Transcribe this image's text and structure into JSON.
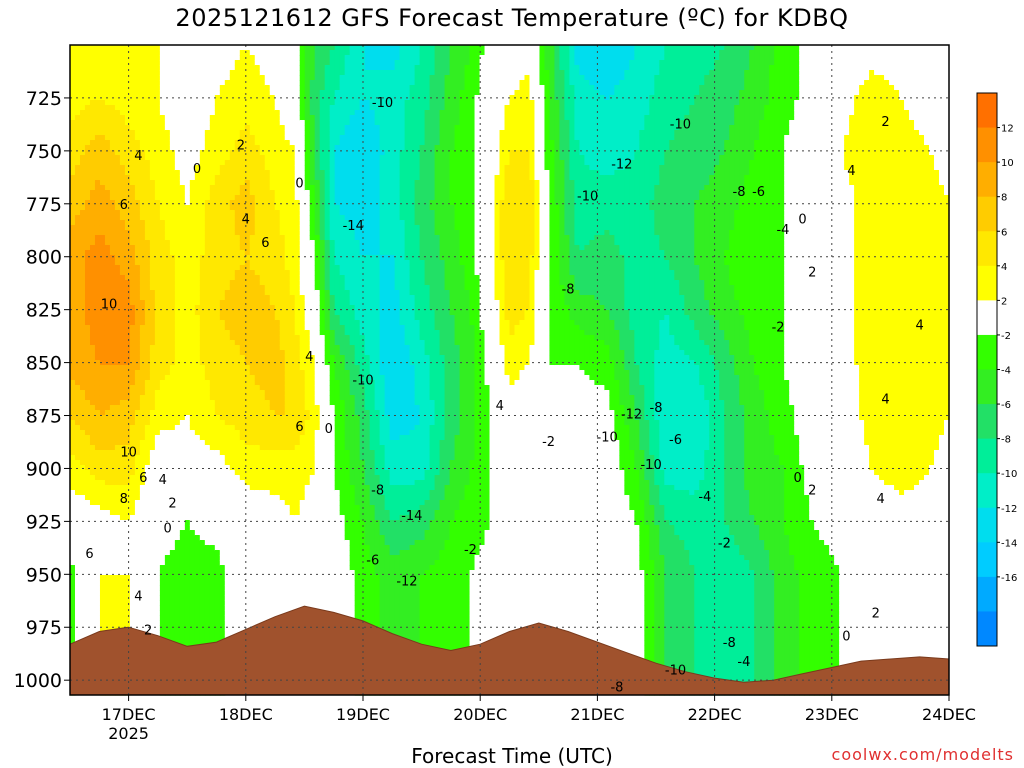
{
  "title": "2025121612 GFS Forecast Temperature (ºC) for KDBQ",
  "xlabel": "Forecast Time (UTC)",
  "credit": "coolwx.com/modelts",
  "colors": {
    "terrain": "#a0522d",
    "zero_line": "#c0286e",
    "contour": "#000000"
  },
  "chart_data": {
    "type": "heatmap",
    "title": "2025121612 GFS Forecast Temperature (ºC) for KDBQ",
    "xlabel": "Forecast Time (UTC)",
    "ylabel": "",
    "x_ticks": [
      {
        "label": "17DEC",
        "sub": "2025",
        "hour": 12
      },
      {
        "label": "18DEC",
        "sub": "",
        "hour": 36
      },
      {
        "label": "19DEC",
        "sub": "",
        "hour": 60
      },
      {
        "label": "20DEC",
        "sub": "",
        "hour": 84
      },
      {
        "label": "21DEC",
        "sub": "",
        "hour": 108
      },
      {
        "label": "22DEC",
        "sub": "",
        "hour": 132
      },
      {
        "label": "23DEC",
        "sub": "",
        "hour": 156
      },
      {
        "label": "24DEC",
        "sub": "",
        "hour": 180
      }
    ],
    "xlim_hours": [
      0,
      180
    ],
    "y_ticks": [
      725,
      750,
      775,
      800,
      825,
      850,
      875,
      900,
      925,
      950,
      975,
      1000
    ],
    "ylim": [
      700,
      1007
    ],
    "y_inverted": true,
    "grid": true,
    "legend": {
      "placement": "right",
      "ticks": [
        "12",
        "10",
        "8",
        "6",
        "4",
        "2",
        "-2",
        "-4",
        "-6",
        "-8",
        "-10",
        "-12",
        "-14",
        "-16"
      ],
      "bins": [
        {
          "color": "#ff7000"
        },
        {
          "color": "#ff9000"
        },
        {
          "color": "#ffae00"
        },
        {
          "color": "#ffcc00"
        },
        {
          "color": "#ffe800"
        },
        {
          "color": "#ffff00"
        },
        {
          "color": "#ffffff"
        },
        {
          "color": "#33ff00"
        },
        {
          "color": "#33ee22"
        },
        {
          "color": "#22e066"
        },
        {
          "color": "#00ee99"
        },
        {
          "color": "#00eec8"
        },
        {
          "color": "#00ddee"
        },
        {
          "color": "#00ccff"
        },
        {
          "color": "#00aaff"
        },
        {
          "color": "#0088ff"
        }
      ]
    },
    "profiles": [
      {
        "hour": 0,
        "temps": [
          2,
          3,
          5,
          7,
          9,
          9,
          9,
          6,
          3,
          0,
          -3
        ]
      },
      {
        "hour": 6,
        "temps": [
          3,
          4,
          7,
          9,
          11,
          11,
          10,
          8,
          5,
          1,
          2
        ]
      },
      {
        "hour": 12,
        "temps": [
          2,
          3,
          5,
          7,
          9,
          11,
          10,
          7,
          5,
          2,
          2
        ]
      },
      {
        "hour": 18,
        "temps": [
          2,
          2,
          3,
          4,
          5,
          5,
          5,
          3,
          0,
          -1,
          -2
        ]
      },
      {
        "hour": 24,
        "temps": [
          -1,
          0,
          1,
          2,
          3,
          3,
          3,
          2,
          1,
          -2,
          -3
        ]
      },
      {
        "hour": 30,
        "temps": [
          1,
          2,
          3,
          5,
          5,
          6,
          5,
          4,
          1,
          -1,
          -3
        ]
      },
      {
        "hour": 36,
        "temps": [
          2,
          3,
          5,
          7,
          6,
          7,
          6,
          5,
          3,
          0,
          1
        ]
      },
      {
        "hour": 42,
        "temps": [
          1,
          2,
          3,
          4,
          5,
          6,
          7,
          6,
          3,
          1,
          0
        ]
      },
      {
        "hour": 46,
        "temps": [
          -1,
          0,
          2,
          3,
          3,
          4,
          5,
          6,
          3,
          2,
          1
        ]
      },
      {
        "hour": 50,
        "temps": [
          -6,
          -7,
          -6,
          -4,
          -2,
          0,
          2,
          3,
          2,
          1,
          1
        ]
      },
      {
        "hour": 54,
        "temps": [
          -8,
          -10,
          -12,
          -12,
          -10,
          -8,
          -4,
          -2,
          -2,
          -1,
          0
        ]
      },
      {
        "hour": 60,
        "temps": [
          -12,
          -12,
          -14,
          -13,
          -12,
          -11,
          -9,
          -7,
          -6,
          -4,
          -3
        ]
      },
      {
        "hour": 66,
        "temps": [
          -13,
          -11,
          -11,
          -11,
          -12,
          -13,
          -14,
          -13,
          -11,
          -8,
          -5
        ]
      },
      {
        "hour": 72,
        "temps": [
          -10,
          -9,
          -8,
          -7,
          -8,
          -9,
          -11,
          -12,
          -11,
          -7,
          -4
        ]
      },
      {
        "hour": 78,
        "temps": [
          -6,
          -5,
          -4,
          -4,
          -5,
          -6,
          -7,
          -7,
          -6,
          -4,
          -3
        ]
      },
      {
        "hour": 82,
        "temps": [
          -4,
          -3,
          -3,
          -3,
          -3,
          -4,
          -5,
          -5,
          -4,
          -3,
          -2
        ]
      },
      {
        "hour": 86,
        "temps": [
          -1,
          0,
          0,
          1,
          1,
          0,
          -1,
          -2,
          -2,
          -2,
          -1
        ]
      },
      {
        "hour": 90,
        "temps": [
          0,
          2,
          4,
          6,
          6,
          5,
          3,
          1,
          -1,
          -1,
          0
        ]
      },
      {
        "hour": 94,
        "temps": [
          1,
          3,
          4,
          6,
          5,
          4,
          2,
          0,
          0,
          1,
          1
        ]
      },
      {
        "hour": 98,
        "temps": [
          -5,
          -4,
          -3,
          -2,
          -2,
          -2,
          -2,
          -1,
          0,
          1,
          1
        ]
      },
      {
        "hour": 104,
        "temps": [
          -13,
          -11,
          -10,
          -9,
          -8,
          -5,
          -2,
          -1,
          0,
          0,
          0
        ]
      },
      {
        "hour": 110,
        "temps": [
          -14,
          -12,
          -11,
          -9,
          -7,
          -6,
          -3,
          -1,
          0,
          0,
          0
        ]
      },
      {
        "hour": 116,
        "temps": [
          -12,
          -11,
          -10,
          -9,
          -9,
          -9,
          -8,
          -6,
          -4,
          -2,
          -1
        ]
      },
      {
        "hour": 122,
        "temps": [
          -10,
          -9,
          -8,
          -7,
          -8,
          -10,
          -11,
          -12,
          -11,
          -8,
          -6
        ]
      },
      {
        "hour": 128,
        "temps": [
          -9,
          -8,
          -7,
          -6,
          -6,
          -7,
          -10,
          -12,
          -11,
          -9,
          -8
        ]
      },
      {
        "hour": 134,
        "temps": [
          -8,
          -7,
          -6,
          -5,
          -4,
          -5,
          -7,
          -8,
          -8,
          -8,
          -10
        ]
      },
      {
        "hour": 140,
        "temps": [
          -6,
          -5,
          -4,
          -3,
          -2,
          -3,
          -4,
          -5,
          -5,
          -6,
          -8
        ]
      },
      {
        "hour": 146,
        "temps": [
          -3,
          -3,
          -2,
          -2,
          -2,
          -2,
          -2,
          -3,
          -4,
          -4,
          -5
        ]
      },
      {
        "hour": 152,
        "temps": [
          -1,
          -1,
          0,
          0,
          -1,
          -1,
          0,
          0,
          -1,
          -2,
          -3
        ]
      },
      {
        "hour": 158,
        "temps": [
          0,
          1,
          2,
          1,
          1,
          1,
          1,
          0,
          -1,
          -1,
          -2
        ]
      },
      {
        "hour": 164,
        "temps": [
          1,
          3,
          4,
          3,
          3,
          3,
          3,
          3,
          2,
          0,
          -1
        ]
      },
      {
        "hour": 170,
        "temps": [
          1,
          2,
          3,
          3,
          3,
          3,
          4,
          4,
          3,
          1,
          0
        ]
      },
      {
        "hour": 176,
        "temps": [
          0,
          1,
          2,
          3,
          4,
          4,
          4,
          3,
          2,
          1,
          0
        ]
      },
      {
        "hour": 180,
        "temps": [
          -1,
          0,
          1,
          2,
          3,
          3,
          3,
          2,
          1,
          1,
          0
        ]
      }
    ],
    "profile_levels": [
      700,
      725,
      750,
      775,
      800,
      825,
      850,
      875,
      900,
      925,
      950
    ],
    "surface_pressure": [
      {
        "hour": 0,
        "p": 983
      },
      {
        "hour": 6,
        "p": 977
      },
      {
        "hour": 12,
        "p": 975
      },
      {
        "hour": 18,
        "p": 979
      },
      {
        "hour": 24,
        "p": 984
      },
      {
        "hour": 30,
        "p": 982
      },
      {
        "hour": 36,
        "p": 976
      },
      {
        "hour": 42,
        "p": 970
      },
      {
        "hour": 48,
        "p": 965
      },
      {
        "hour": 54,
        "p": 968
      },
      {
        "hour": 60,
        "p": 972
      },
      {
        "hour": 66,
        "p": 978
      },
      {
        "hour": 72,
        "p": 983
      },
      {
        "hour": 78,
        "p": 986
      },
      {
        "hour": 84,
        "p": 983
      },
      {
        "hour": 90,
        "p": 977
      },
      {
        "hour": 96,
        "p": 973
      },
      {
        "hour": 102,
        "p": 977
      },
      {
        "hour": 108,
        "p": 982
      },
      {
        "hour": 114,
        "p": 987
      },
      {
        "hour": 120,
        "p": 992
      },
      {
        "hour": 126,
        "p": 996
      },
      {
        "hour": 132,
        "p": 999
      },
      {
        "hour": 138,
        "p": 1001
      },
      {
        "hour": 144,
        "p": 1000
      },
      {
        "hour": 150,
        "p": 997
      },
      {
        "hour": 156,
        "p": 994
      },
      {
        "hour": 162,
        "p": 991
      },
      {
        "hour": 168,
        "p": 990
      },
      {
        "hour": 174,
        "p": 989
      },
      {
        "hour": 180,
        "p": 990
      }
    ],
    "contour_labels": [
      {
        "text": "10",
        "hour": 8,
        "p": 822
      },
      {
        "text": "10",
        "hour": 12,
        "p": 892
      },
      {
        "text": "8",
        "hour": 11,
        "p": 914
      },
      {
        "text": "6",
        "hour": 11,
        "p": 775
      },
      {
        "text": "6",
        "hour": 15,
        "p": 904
      },
      {
        "text": "6",
        "hour": 4,
        "p": 940
      },
      {
        "text": "4",
        "hour": 14,
        "p": 752
      },
      {
        "text": "4",
        "hour": 19,
        "p": 905
      },
      {
        "text": "4",
        "hour": 14,
        "p": 960
      },
      {
        "text": "2",
        "hour": 21,
        "p": 916
      },
      {
        "text": "0",
        "hour": 20,
        "p": 928
      },
      {
        "text": "2",
        "hour": 16,
        "p": 976
      },
      {
        "text": "0",
        "hour": 26,
        "p": 758
      },
      {
        "text": "2",
        "hour": 35,
        "p": 747
      },
      {
        "text": "4",
        "hour": 36,
        "p": 782
      },
      {
        "text": "6",
        "hour": 40,
        "p": 793
      },
      {
        "text": "4",
        "hour": 49,
        "p": 847
      },
      {
        "text": "6",
        "hour": 47,
        "p": 880
      },
      {
        "text": "0",
        "hour": 47,
        "p": 765
      },
      {
        "text": "0",
        "hour": 53,
        "p": 881
      },
      {
        "text": "-14",
        "hour": 58,
        "p": 785
      },
      {
        "text": "-10",
        "hour": 64,
        "p": 727
      },
      {
        "text": "-10",
        "hour": 60,
        "p": 858
      },
      {
        "text": "-8",
        "hour": 63,
        "p": 910
      },
      {
        "text": "-14",
        "hour": 70,
        "p": 922
      },
      {
        "text": "-6",
        "hour": 62,
        "p": 943
      },
      {
        "text": "-12",
        "hour": 69,
        "p": 953
      },
      {
        "text": "-2",
        "hour": 82,
        "p": 938
      },
      {
        "text": "4",
        "hour": 88,
        "p": 870
      },
      {
        "text": "-2",
        "hour": 98,
        "p": 887
      },
      {
        "text": "-8",
        "hour": 102,
        "p": 815
      },
      {
        "text": "-10",
        "hour": 106,
        "p": 771
      },
      {
        "text": "-12",
        "hour": 113,
        "p": 756
      },
      {
        "text": "-10",
        "hour": 125,
        "p": 737
      },
      {
        "text": "-12",
        "hour": 115,
        "p": 874
      },
      {
        "text": "-10",
        "hour": 110,
        "p": 885
      },
      {
        "text": "-8",
        "hour": 120,
        "p": 871
      },
      {
        "text": "-6",
        "hour": 124,
        "p": 886
      },
      {
        "text": "-10",
        "hour": 119,
        "p": 898
      },
      {
        "text": "-4",
        "hour": 130,
        "p": 913
      },
      {
        "text": "-8",
        "hour": 137,
        "p": 769
      },
      {
        "text": "-6",
        "hour": 141,
        "p": 769
      },
      {
        "text": "-4",
        "hour": 146,
        "p": 787
      },
      {
        "text": "-2",
        "hour": 145,
        "p": 833
      },
      {
        "text": "0",
        "hour": 150,
        "p": 782
      },
      {
        "text": "2",
        "hour": 152,
        "p": 807
      },
      {
        "text": "-2",
        "hour": 134,
        "p": 935
      },
      {
        "text": "-8",
        "hour": 135,
        "p": 982
      },
      {
        "text": "-4",
        "hour": 138,
        "p": 991
      },
      {
        "text": "-10",
        "hour": 124,
        "p": 995
      },
      {
        "text": "-8",
        "hour": 112,
        "p": 1003
      },
      {
        "text": "0",
        "hour": 149,
        "p": 904
      },
      {
        "text": "2",
        "hour": 152,
        "p": 910
      },
      {
        "text": "4",
        "hour": 160,
        "p": 759
      },
      {
        "text": "2",
        "hour": 167,
        "p": 736
      },
      {
        "text": "4",
        "hour": 174,
        "p": 832
      },
      {
        "text": "4",
        "hour": 167,
        "p": 867
      },
      {
        "text": "4",
        "hour": 166,
        "p": 914
      },
      {
        "text": "2",
        "hour": 165,
        "p": 968
      },
      {
        "text": "0",
        "hour": 159,
        "p": 979
      }
    ]
  }
}
